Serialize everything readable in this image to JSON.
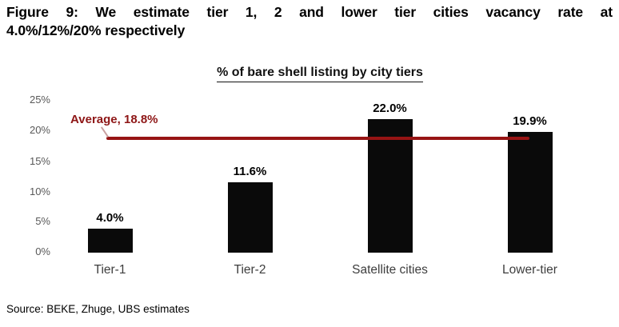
{
  "figure": {
    "title_line1": "Figure 9: We estimate tier 1, 2 and lower tier cities vacancy rate at",
    "title_line2": "4.0%/12%/20% respectively",
    "source": "Source: BEKE, Zhuge, UBS estimates"
  },
  "chart_data": {
    "type": "bar",
    "title": "% of bare shell listing by city tiers",
    "categories": [
      "Tier-1",
      "Tier-2",
      "Satellite cities",
      "Lower-tier"
    ],
    "values": [
      4.0,
      11.6,
      22.0,
      19.9
    ],
    "value_labels": [
      "4.0%",
      "11.6%",
      "22.0%",
      "19.9%"
    ],
    "average_value": 18.8,
    "average_label": "Average, 18.8%",
    "ytick_labels": [
      "25%",
      "20%",
      "15%",
      "10%",
      "5%",
      "0%"
    ],
    "ylim": [
      0,
      25
    ],
    "grid": false,
    "legend_position": "none",
    "colors": {
      "bar": "#0a0a0a",
      "average_line": "#971414",
      "average_label": "#8e1616",
      "tick_label": "#595959",
      "category_label": "#3d3d3d"
    }
  }
}
